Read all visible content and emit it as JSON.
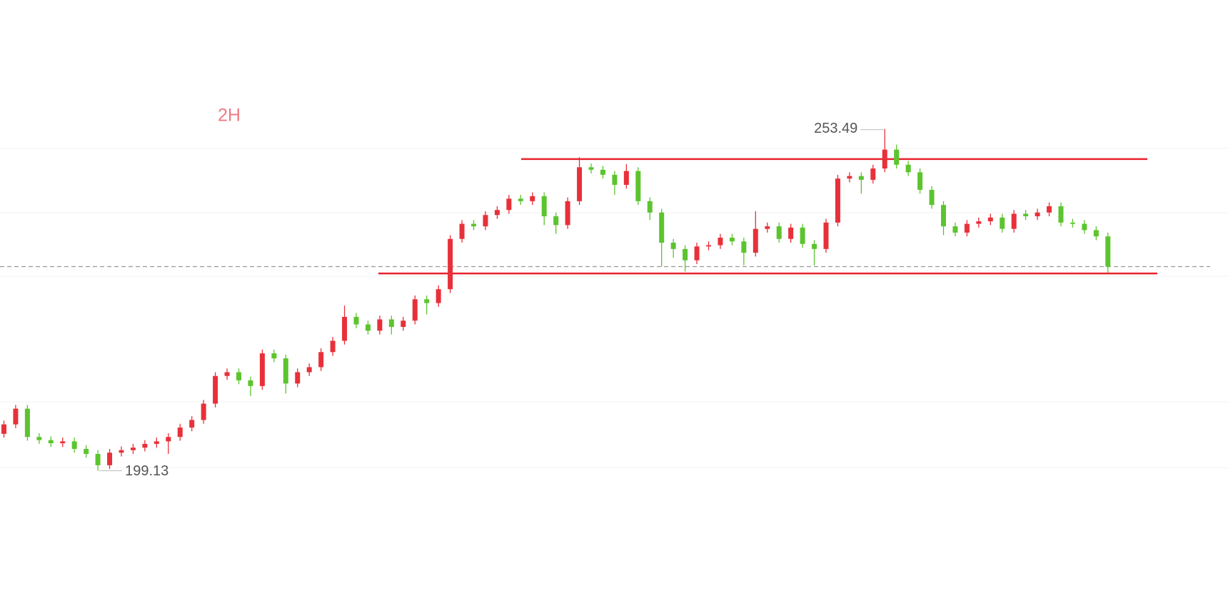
{
  "chart_data": {
    "type": "candlestick",
    "interval": "2H",
    "up_color": "#e8303a",
    "down_color": "#5cc42e",
    "ylim": [
      180,
      274
    ],
    "open": [
      205.0,
      206.5,
      209.0,
      204.5,
      204.0,
      203.5,
      203.8,
      202.6,
      201.8,
      200.0,
      202.0,
      202.4,
      202.8,
      203.4,
      203.8,
      204.5,
      206.0,
      207.2,
      209.8,
      214.2,
      214.8,
      213.5,
      212.6,
      217.8,
      217.0,
      213.0,
      214.8,
      215.6,
      218.0,
      219.8,
      223.6,
      222.4,
      221.4,
      223.2,
      222.0,
      223.0,
      226.4,
      225.8,
      228.0,
      236.0,
      238.4,
      238.0,
      239.8,
      240.6,
      242.4,
      242.0,
      242.8,
      239.6,
      238.2,
      242.0,
      247.4,
      247.0,
      246.2,
      244.6,
      246.8,
      242.0,
      240.2,
      235.4,
      234.4,
      232.6,
      234.8,
      235.0,
      236.2,
      235.6,
      233.8,
      237.6,
      238.0,
      236.0,
      237.8,
      235.2,
      234.4,
      238.6,
      245.6,
      246.0,
      245.4,
      247.2,
      250.2,
      247.8,
      246.6,
      243.8,
      241.4,
      238.0,
      237.0,
      238.4,
      238.8,
      239.4,
      237.6,
      240.0,
      239.6,
      240.2,
      241.2,
      238.6,
      238.4,
      237.4,
      236.4
    ],
    "close": [
      206.5,
      209.0,
      204.5,
      204.0,
      203.5,
      203.8,
      202.6,
      201.8,
      200.0,
      202.0,
      202.4,
      202.8,
      203.4,
      203.8,
      204.5,
      206.0,
      207.2,
      209.8,
      214.2,
      214.8,
      213.5,
      212.6,
      217.8,
      217.0,
      213.0,
      214.8,
      215.6,
      218.0,
      219.8,
      223.6,
      222.4,
      221.4,
      223.2,
      222.0,
      223.0,
      226.4,
      225.8,
      228.0,
      236.0,
      238.4,
      238.0,
      239.8,
      240.6,
      242.4,
      242.0,
      242.8,
      239.6,
      238.2,
      242.0,
      247.4,
      247.0,
      246.2,
      244.6,
      246.8,
      242.0,
      240.2,
      235.4,
      234.4,
      232.6,
      234.8,
      235.0,
      236.2,
      235.6,
      233.8,
      237.6,
      238.0,
      236.0,
      237.8,
      235.2,
      234.4,
      238.6,
      245.6,
      246.0,
      245.4,
      247.2,
      250.2,
      247.8,
      246.6,
      243.8,
      241.4,
      238.0,
      237.0,
      238.4,
      238.8,
      239.4,
      237.6,
      240.0,
      239.6,
      240.2,
      241.2,
      238.6,
      238.4,
      237.4,
      236.4,
      231.6
    ],
    "high": [
      207.1,
      209.6,
      209.6,
      205.1,
      204.6,
      204.4,
      204.4,
      203.2,
      202.4,
      202.6,
      203.0,
      203.4,
      204.0,
      204.4,
      205.1,
      206.6,
      207.8,
      210.4,
      214.8,
      215.4,
      215.4,
      214.1,
      218.4,
      218.4,
      217.6,
      215.4,
      216.2,
      218.6,
      220.4,
      225.4,
      224.2,
      223.0,
      223.8,
      223.8,
      223.6,
      227.0,
      227.0,
      228.6,
      236.6,
      239.0,
      239.0,
      240.4,
      241.2,
      243.0,
      243.0,
      243.4,
      243.4,
      240.2,
      242.6,
      249.0,
      248.0,
      247.6,
      246.8,
      247.9,
      247.4,
      242.6,
      240.8,
      236.0,
      235.0,
      235.4,
      235.6,
      236.8,
      236.8,
      236.2,
      240.4,
      238.6,
      238.6,
      238.4,
      238.4,
      235.8,
      239.2,
      246.2,
      246.6,
      246.6,
      247.8,
      253.49,
      251.0,
      248.4,
      247.2,
      244.4,
      242.0,
      238.6,
      239.0,
      239.4,
      240.0,
      240.0,
      240.6,
      240.6,
      240.8,
      241.8,
      241.8,
      239.2,
      239.0,
      238.0,
      237.0
    ],
    "low": [
      204.4,
      205.9,
      203.9,
      203.4,
      202.9,
      202.9,
      202.0,
      201.2,
      199.13,
      199.4,
      201.4,
      201.8,
      202.2,
      202.8,
      201.8,
      203.9,
      205.4,
      206.6,
      209.2,
      213.6,
      212.9,
      211.0,
      212.0,
      216.4,
      211.4,
      212.4,
      214.2,
      215.0,
      217.4,
      219.2,
      221.8,
      220.8,
      220.8,
      220.8,
      221.4,
      222.4,
      224.0,
      225.2,
      227.4,
      235.4,
      237.4,
      237.4,
      239.2,
      240.0,
      241.4,
      241.4,
      238.2,
      236.8,
      237.6,
      241.4,
      246.4,
      245.6,
      243.0,
      244.0,
      241.4,
      239.0,
      231.6,
      233.0,
      230.8,
      232.0,
      234.2,
      234.4,
      235.0,
      231.8,
      233.2,
      237.0,
      235.4,
      235.4,
      234.6,
      231.8,
      233.8,
      238.0,
      245.0,
      243.2,
      244.8,
      246.6,
      247.2,
      246.0,
      243.2,
      240.8,
      236.6,
      236.4,
      236.4,
      237.8,
      238.2,
      237.0,
      237.0,
      239.0,
      239.0,
      239.6,
      238.0,
      237.8,
      236.8,
      235.8,
      230.6
    ],
    "lines": [
      {
        "value": 248.7,
        "color": "#e8222e"
      },
      {
        "value": 230.5,
        "color": "#e8222e"
      }
    ]
  }
}
